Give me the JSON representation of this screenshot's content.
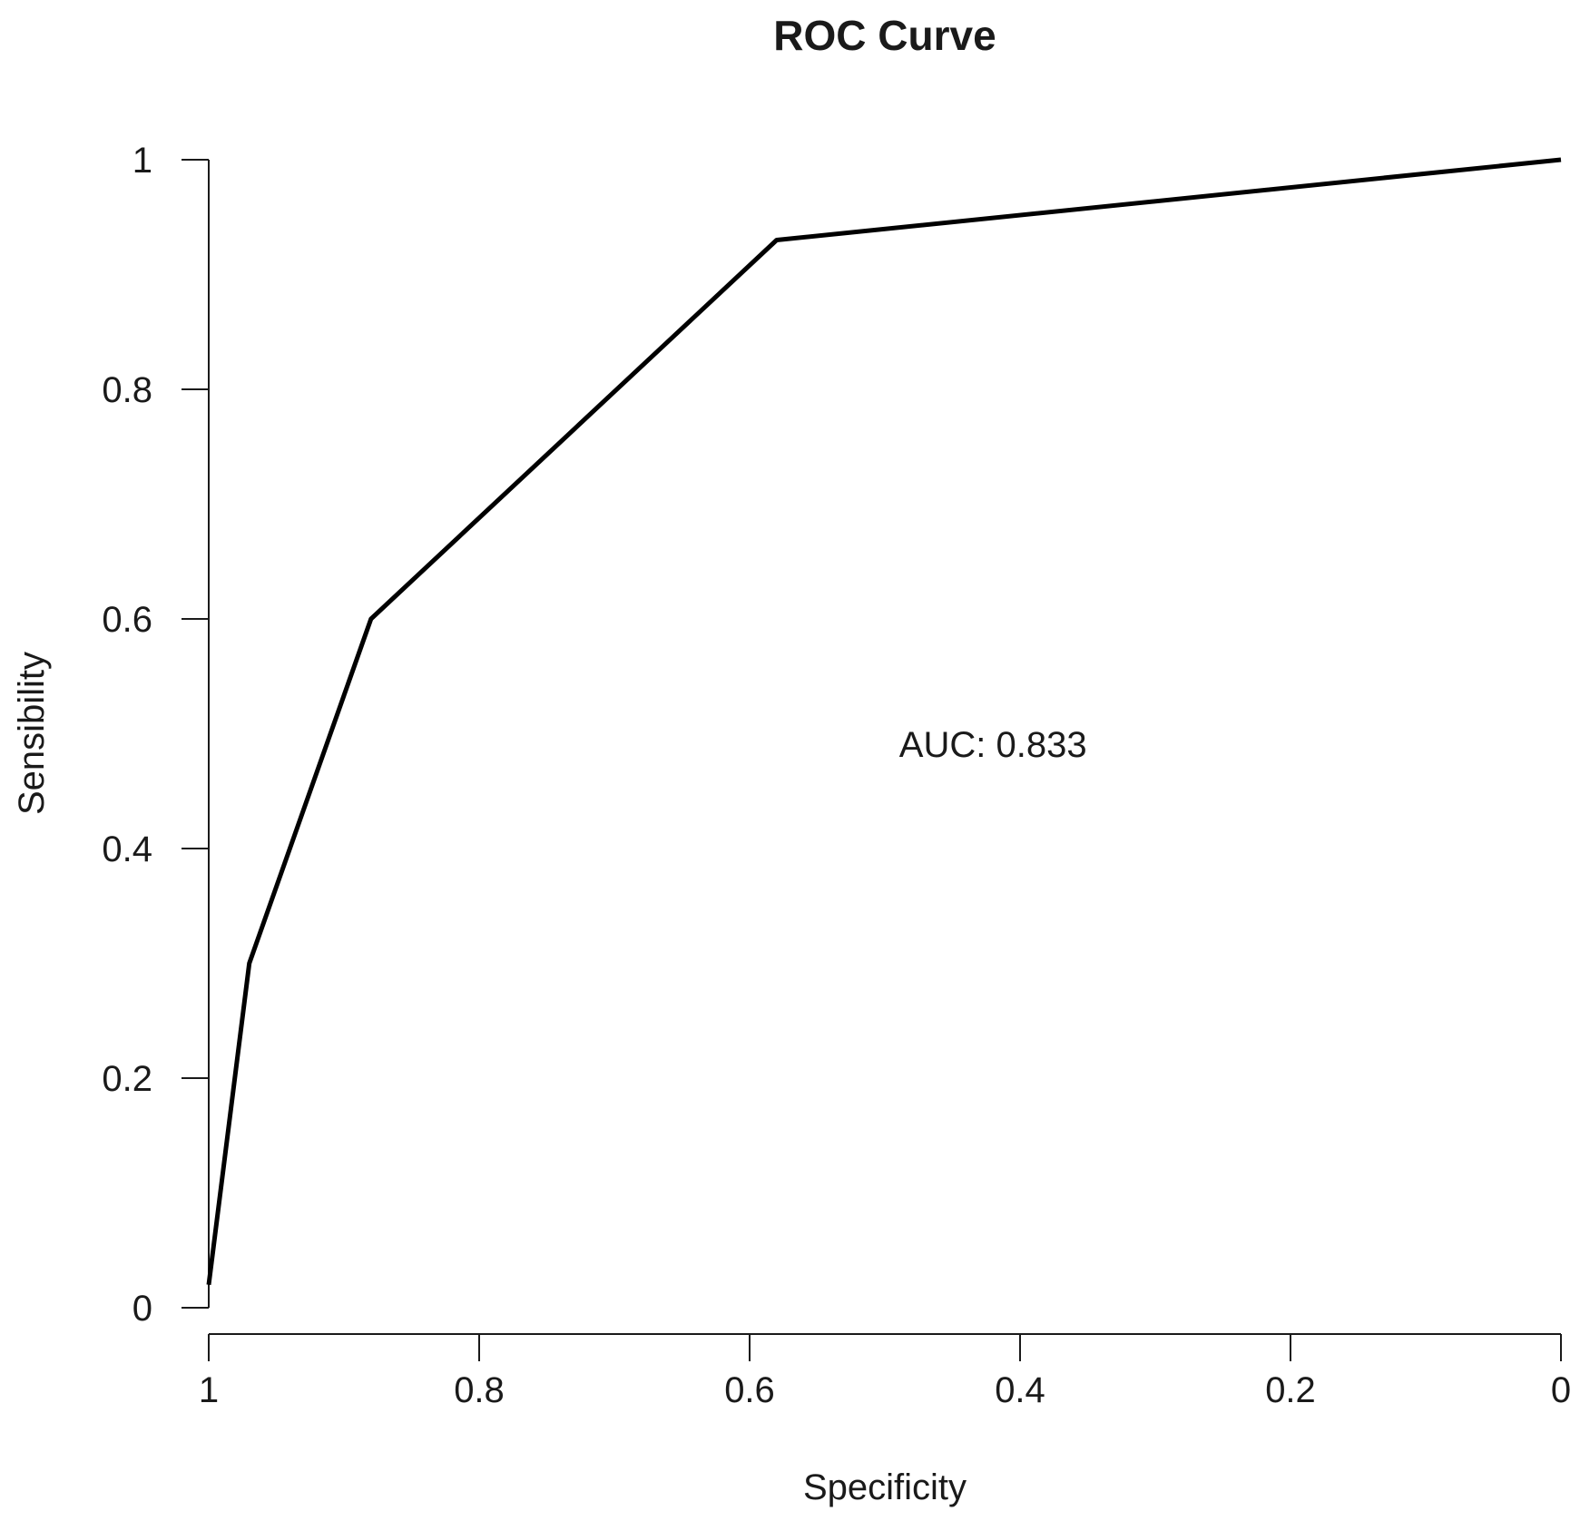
{
  "chart_data": {
    "type": "line",
    "title": "ROC Curve",
    "xlabel": "Specificity",
    "ylabel": "Sensibility",
    "xlim": [
      1,
      0
    ],
    "ylim": [
      0,
      1
    ],
    "x_ticks": [
      1,
      0.8,
      0.6,
      0.4,
      0.2,
      0
    ],
    "x_tick_labels": [
      "1",
      "0.8",
      "0.6",
      "0.4",
      "0.2",
      "0"
    ],
    "y_ticks": [
      0,
      0.2,
      0.4,
      0.6,
      0.8,
      1
    ],
    "y_tick_labels": [
      "0",
      "0.2",
      "0.4",
      "0.6",
      "0.8",
      "1"
    ],
    "grid": false,
    "series": [
      {
        "name": "ROC",
        "x": [
          1.0,
          0.97,
          0.88,
          0.58,
          0.0
        ],
        "y": [
          0.02,
          0.3,
          0.6,
          0.93,
          1.0
        ]
      }
    ],
    "annotations": [
      {
        "text": "AUC: 0.833",
        "x": 0.42,
        "y": 0.48
      }
    ]
  }
}
